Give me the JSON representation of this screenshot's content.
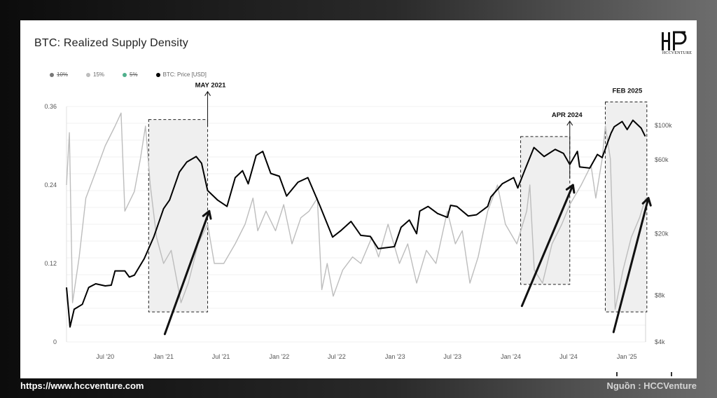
{
  "chart_data": {
    "type": "line",
    "title": "BTC: Realized Supply Density",
    "legend": [
      {
        "label": "10%",
        "color": "#777777",
        "strike": true
      },
      {
        "label": "15%",
        "color": "#bdbdbd",
        "strike": false
      },
      {
        "label": "5%",
        "color": "#4fb08c",
        "strike": true
      },
      {
        "label": "BTC: Price [USD]",
        "color": "#000000",
        "strike": false
      }
    ],
    "x_tick_labels": [
      "Jul '20",
      "Jan '21",
      "Jul '21",
      "Jan '22",
      "Jul '22",
      "Jan '23",
      "Jul '23",
      "Jan '24",
      "Jul '24",
      "Jan '25"
    ],
    "x_range": [
      "2020-03",
      "2025-03"
    ],
    "y_left": {
      "ticks": [
        0,
        0.12,
        0.24,
        0.36
      ],
      "labels": [
        "0",
        "0.12",
        "0.24",
        "0.36"
      ],
      "range": [
        0,
        0.36
      ]
    },
    "y_right": {
      "scale": "log",
      "ticks": [
        4000,
        8000,
        20000,
        60000,
        100000
      ],
      "labels": [
        "$4k",
        "$8k",
        "$20k",
        "$60k",
        "$100k"
      ],
      "range": [
        4000,
        100000
      ]
    },
    "grid": true,
    "series": [
      {
        "name": "BTC: Price [USD]",
        "color": "#000000",
        "points": [
          [
            "2020-03-01",
            9000
          ],
          [
            "2020-03-12",
            5000
          ],
          [
            "2020-03-25",
            6500
          ],
          [
            "2020-04-20",
            7000
          ],
          [
            "2020-05-10",
            9000
          ],
          [
            "2020-06-01",
            9500
          ],
          [
            "2020-07-01",
            9200
          ],
          [
            "2020-07-20",
            9300
          ],
          [
            "2020-08-01",
            11500
          ],
          [
            "2020-09-01",
            11500
          ],
          [
            "2020-09-15",
            10500
          ],
          [
            "2020-10-01",
            10800
          ],
          [
            "2020-11-01",
            13800
          ],
          [
            "2020-12-01",
            19000
          ],
          [
            "2021-01-01",
            29000
          ],
          [
            "2021-01-20",
            33000
          ],
          [
            "2021-02-20",
            50000
          ],
          [
            "2021-03-15",
            58000
          ],
          [
            "2021-04-14",
            63000
          ],
          [
            "2021-05-01",
            57000
          ],
          [
            "2021-05-20",
            38000
          ],
          [
            "2021-06-20",
            33000
          ],
          [
            "2021-07-20",
            30000
          ],
          [
            "2021-08-15",
            46000
          ],
          [
            "2021-09-07",
            51000
          ],
          [
            "2021-09-25",
            42000
          ],
          [
            "2021-10-20",
            64000
          ],
          [
            "2021-11-10",
            68000
          ],
          [
            "2021-12-05",
            49000
          ],
          [
            "2022-01-01",
            47000
          ],
          [
            "2022-01-24",
            35000
          ],
          [
            "2022-03-01",
            43000
          ],
          [
            "2022-04-01",
            46000
          ],
          [
            "2022-05-10",
            30000
          ],
          [
            "2022-06-18",
            19000
          ],
          [
            "2022-07-15",
            21000
          ],
          [
            "2022-08-15",
            24000
          ],
          [
            "2022-09-15",
            19500
          ],
          [
            "2022-10-15",
            19200
          ],
          [
            "2022-11-09",
            16000
          ],
          [
            "2022-12-30",
            16500
          ],
          [
            "2023-01-20",
            22000
          ],
          [
            "2023-02-15",
            24500
          ],
          [
            "2023-03-10",
            20000
          ],
          [
            "2023-03-20",
            28000
          ],
          [
            "2023-04-15",
            30000
          ],
          [
            "2023-05-15",
            27000
          ],
          [
            "2023-06-15",
            25500
          ],
          [
            "2023-06-25",
            30500
          ],
          [
            "2023-07-15",
            30000
          ],
          [
            "2023-08-20",
            26000
          ],
          [
            "2023-09-15",
            26500
          ],
          [
            "2023-10-20",
            30000
          ],
          [
            "2023-10-30",
            34500
          ],
          [
            "2023-12-05",
            42000
          ],
          [
            "2024-01-10",
            46000
          ],
          [
            "2024-01-23",
            39500
          ],
          [
            "2024-02-15",
            52000
          ],
          [
            "2024-03-14",
            72000
          ],
          [
            "2024-04-15",
            63000
          ],
          [
            "2024-05-20",
            70000
          ],
          [
            "2024-06-15",
            66000
          ],
          [
            "2024-07-05",
            56000
          ],
          [
            "2024-07-29",
            68000
          ],
          [
            "2024-08-05",
            54000
          ],
          [
            "2024-09-06",
            53000
          ],
          [
            "2024-09-30",
            65000
          ],
          [
            "2024-10-15",
            62000
          ],
          [
            "2024-11-12",
            89000
          ],
          [
            "2024-11-22",
            98000
          ],
          [
            "2024-12-17",
            106000
          ],
          [
            "2025-01-02",
            94000
          ],
          [
            "2025-01-20",
            108000
          ],
          [
            "2025-02-15",
            96000
          ],
          [
            "2025-02-28",
            85000
          ]
        ]
      },
      {
        "name": "15%",
        "color": "#bdbdbd",
        "points": [
          [
            "2020-03-01",
            0.24
          ],
          [
            "2020-03-10",
            0.32
          ],
          [
            "2020-03-20",
            0.06
          ],
          [
            "2020-04-10",
            0.13
          ],
          [
            "2020-05-01",
            0.22
          ],
          [
            "2020-06-01",
            0.26
          ],
          [
            "2020-07-01",
            0.3
          ],
          [
            "2020-08-01",
            0.33
          ],
          [
            "2020-08-20",
            0.35
          ],
          [
            "2020-09-01",
            0.2
          ],
          [
            "2020-10-01",
            0.23
          ],
          [
            "2020-10-20",
            0.28
          ],
          [
            "2020-11-05",
            0.33
          ],
          [
            "2020-11-20",
            0.24
          ],
          [
            "2020-12-10",
            0.16
          ],
          [
            "2021-01-01",
            0.12
          ],
          [
            "2021-01-25",
            0.14
          ],
          [
            "2021-02-25",
            0.06
          ],
          [
            "2021-03-20",
            0.09
          ],
          [
            "2021-04-20",
            0.15
          ],
          [
            "2021-05-20",
            0.18
          ],
          [
            "2021-06-10",
            0.12
          ],
          [
            "2021-07-10",
            0.12
          ],
          [
            "2021-08-15",
            0.15
          ],
          [
            "2021-09-15",
            0.18
          ],
          [
            "2021-10-10",
            0.22
          ],
          [
            "2021-10-25",
            0.17
          ],
          [
            "2021-11-20",
            0.2
          ],
          [
            "2021-12-20",
            0.17
          ],
          [
            "2022-01-15",
            0.21
          ],
          [
            "2022-02-10",
            0.15
          ],
          [
            "2022-03-10",
            0.19
          ],
          [
            "2022-04-05",
            0.2
          ],
          [
            "2022-05-01",
            0.22
          ],
          [
            "2022-05-15",
            0.08
          ],
          [
            "2022-06-01",
            0.12
          ],
          [
            "2022-06-20",
            0.07
          ],
          [
            "2022-07-20",
            0.11
          ],
          [
            "2022-08-20",
            0.13
          ],
          [
            "2022-09-15",
            0.12
          ],
          [
            "2022-10-20",
            0.16
          ],
          [
            "2022-11-10",
            0.13
          ],
          [
            "2022-12-10",
            0.18
          ],
          [
            "2023-01-15",
            0.12
          ],
          [
            "2023-02-10",
            0.15
          ],
          [
            "2023-03-10",
            0.09
          ],
          [
            "2023-04-10",
            0.14
          ],
          [
            "2023-05-10",
            0.12
          ],
          [
            "2023-06-15",
            0.2
          ],
          [
            "2023-07-10",
            0.15
          ],
          [
            "2023-08-01",
            0.17
          ],
          [
            "2023-08-25",
            0.09
          ],
          [
            "2023-09-20",
            0.13
          ],
          [
            "2023-10-20",
            0.2
          ],
          [
            "2023-11-20",
            0.24
          ],
          [
            "2023-12-15",
            0.18
          ],
          [
            "2024-01-20",
            0.15
          ],
          [
            "2024-02-20",
            0.2
          ],
          [
            "2024-03-01",
            0.24
          ],
          [
            "2024-03-15",
            0.11
          ],
          [
            "2024-04-10",
            0.09
          ],
          [
            "2024-05-10",
            0.15
          ],
          [
            "2024-06-10",
            0.18
          ],
          [
            "2024-07-05",
            0.21
          ],
          [
            "2024-08-10",
            0.24
          ],
          [
            "2024-09-10",
            0.27
          ],
          [
            "2024-09-25",
            0.22
          ],
          [
            "2024-10-15",
            0.28
          ],
          [
            "2024-10-25",
            0.33
          ],
          [
            "2024-11-10",
            0.28
          ],
          [
            "2024-11-25",
            0.05
          ],
          [
            "2024-12-20",
            0.11
          ],
          [
            "2025-01-15",
            0.16
          ],
          [
            "2025-02-10",
            0.19
          ],
          [
            "2025-03-01",
            0.22
          ]
        ]
      }
    ],
    "annotations": [
      {
        "label": "MAY 2021",
        "box": {
          "x0": "2020-11-15",
          "x1": "2021-05-20",
          "y0": 0.046,
          "y1": 0.34
        },
        "arrow_from": [
          "2021-01-05",
          0.012
        ],
        "arrow_to": [
          "2021-05-25",
          0.2
        ]
      },
      {
        "label": "APR 2024",
        "box": {
          "x0": "2024-02-01",
          "x1": "2024-07-05",
          "y0": 0.088,
          "y1": 0.314
        },
        "arrow_from": [
          "2024-02-05",
          0.055
        ],
        "arrow_to": [
          "2024-07-15",
          0.24
        ]
      },
      {
        "label": "FEB 2025",
        "box": {
          "x0": "2024-10-25",
          "x1": "2025-03-05",
          "y0": 0.046,
          "y1": 0.367
        },
        "arrow_from": [
          "2024-11-20",
          0.015
        ],
        "arrow_to": [
          "2025-03-10",
          0.22
        ]
      }
    ]
  },
  "logo_text": "HCCVENTURE",
  "footer": {
    "url": "https://www.hccventure.com",
    "source": "Nguồn : HCCVenture"
  }
}
